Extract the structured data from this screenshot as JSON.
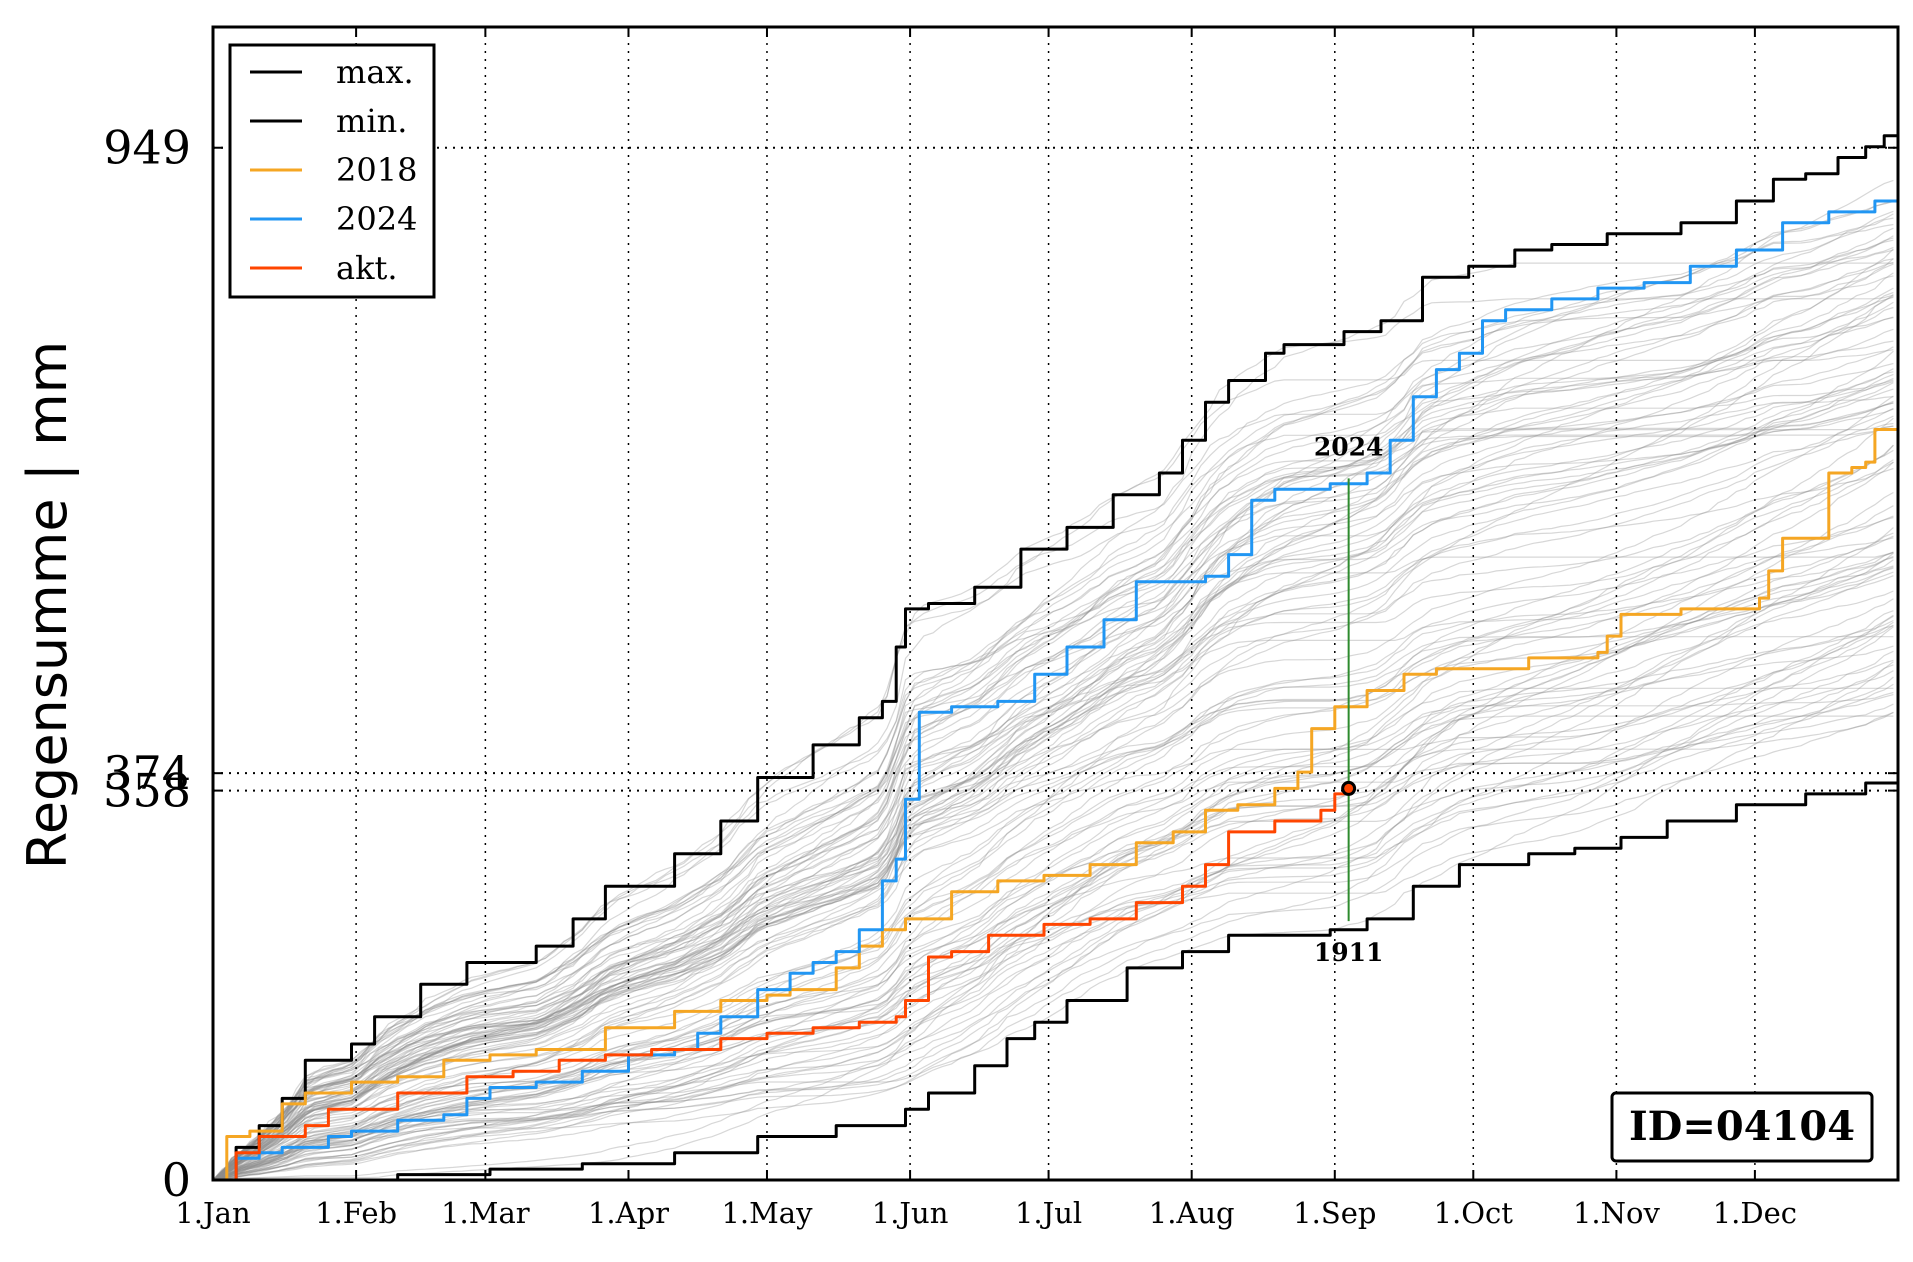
{
  "chart_data": {
    "type": "line",
    "title": "",
    "xlabel": "",
    "ylabel": "Regensumme | mm",
    "x_unit": "day of year",
    "xlim": [
      0,
      365
    ],
    "ylim": [
      0,
      1060
    ],
    "grid": true,
    "legend_position": "top-left",
    "x_ticks": [
      {
        "day": 0,
        "label": "1.Jan"
      },
      {
        "day": 31,
        "label": "1.Feb"
      },
      {
        "day": 59,
        "label": "1.Mar"
      },
      {
        "day": 90,
        "label": "1.Apr"
      },
      {
        "day": 120,
        "label": "1.May"
      },
      {
        "day": 151,
        "label": "1.Jun"
      },
      {
        "day": 181,
        "label": "1.Jul"
      },
      {
        "day": 212,
        "label": "1.Aug"
      },
      {
        "day": 243,
        "label": "1.Sep"
      },
      {
        "day": 273,
        "label": "1.Oct"
      },
      {
        "day": 304,
        "label": "1.Nov"
      },
      {
        "day": 334,
        "label": "1.Dec"
      }
    ],
    "y_ticks": [
      {
        "value": 0,
        "label": "0"
      },
      {
        "value": 358,
        "label": "358"
      },
      {
        "value": 374,
        "label": "374"
      },
      {
        "value": 949,
        "label": "949"
      }
    ],
    "series": [
      {
        "name": "max.",
        "color": "#000000",
        "width": 3,
        "points": [
          [
            0,
            0
          ],
          [
            5,
            30
          ],
          [
            10,
            50
          ],
          [
            15,
            75
          ],
          [
            20,
            110
          ],
          [
            30,
            125
          ],
          [
            35,
            150
          ],
          [
            45,
            180
          ],
          [
            55,
            200
          ],
          [
            70,
            215
          ],
          [
            78,
            240
          ],
          [
            85,
            270
          ],
          [
            100,
            300
          ],
          [
            110,
            330
          ],
          [
            118,
            370
          ],
          [
            130,
            400
          ],
          [
            140,
            425
          ],
          [
            145,
            440
          ],
          [
            148,
            490
          ],
          [
            150,
            525
          ],
          [
            155,
            530
          ],
          [
            165,
            545
          ],
          [
            175,
            580
          ],
          [
            185,
            600
          ],
          [
            195,
            630
          ],
          [
            205,
            650
          ],
          [
            210,
            680
          ],
          [
            215,
            715
          ],
          [
            220,
            735
          ],
          [
            228,
            760
          ],
          [
            232,
            768
          ],
          [
            245,
            780
          ],
          [
            253,
            790
          ],
          [
            262,
            830
          ],
          [
            272,
            840
          ],
          [
            282,
            855
          ],
          [
            290,
            860
          ],
          [
            302,
            870
          ],
          [
            318,
            880
          ],
          [
            330,
            900
          ],
          [
            338,
            920
          ],
          [
            345,
            925
          ],
          [
            352,
            940
          ],
          [
            358,
            950
          ],
          [
            362,
            960
          ],
          [
            365,
            965
          ]
        ]
      },
      {
        "name": "min.",
        "color": "#000000",
        "width": 3,
        "points": [
          [
            0,
            0
          ],
          [
            30,
            0
          ],
          [
            40,
            5
          ],
          [
            60,
            10
          ],
          [
            80,
            15
          ],
          [
            100,
            25
          ],
          [
            118,
            40
          ],
          [
            135,
            50
          ],
          [
            150,
            65
          ],
          [
            155,
            80
          ],
          [
            165,
            105
          ],
          [
            172,
            130
          ],
          [
            178,
            145
          ],
          [
            185,
            165
          ],
          [
            198,
            195
          ],
          [
            210,
            210
          ],
          [
            220,
            225
          ],
          [
            242,
            230
          ],
          [
            250,
            240
          ],
          [
            260,
            270
          ],
          [
            270,
            290
          ],
          [
            285,
            300
          ],
          [
            295,
            305
          ],
          [
            305,
            315
          ],
          [
            315,
            330
          ],
          [
            330,
            345
          ],
          [
            345,
            355
          ],
          [
            358,
            365
          ],
          [
            365,
            375
          ]
        ]
      },
      {
        "name": "2018",
        "color": "#f5a623",
        "width": 3,
        "points": [
          [
            0,
            0
          ],
          [
            3,
            40
          ],
          [
            8,
            45
          ],
          [
            15,
            70
          ],
          [
            20,
            80
          ],
          [
            30,
            90
          ],
          [
            40,
            95
          ],
          [
            50,
            110
          ],
          [
            60,
            115
          ],
          [
            70,
            120
          ],
          [
            85,
            140
          ],
          [
            100,
            155
          ],
          [
            110,
            165
          ],
          [
            120,
            170
          ],
          [
            125,
            175
          ],
          [
            135,
            195
          ],
          [
            140,
            215
          ],
          [
            145,
            230
          ],
          [
            150,
            240
          ],
          [
            160,
            265
          ],
          [
            170,
            275
          ],
          [
            180,
            280
          ],
          [
            190,
            290
          ],
          [
            200,
            310
          ],
          [
            208,
            320
          ],
          [
            215,
            340
          ],
          [
            222,
            345
          ],
          [
            230,
            360
          ],
          [
            235,
            375
          ],
          [
            238,
            415
          ],
          [
            243,
            435
          ],
          [
            250,
            450
          ],
          [
            258,
            465
          ],
          [
            265,
            470
          ],
          [
            285,
            480
          ],
          [
            300,
            485
          ],
          [
            302,
            500
          ],
          [
            305,
            520
          ],
          [
            318,
            525
          ],
          [
            335,
            535
          ],
          [
            337,
            560
          ],
          [
            340,
            590
          ],
          [
            350,
            650
          ],
          [
            355,
            655
          ],
          [
            358,
            660
          ],
          [
            360,
            690
          ],
          [
            365,
            692
          ]
        ]
      },
      {
        "name": "2024",
        "color": "#2196f3",
        "width": 3,
        "points": [
          [
            0,
            0
          ],
          [
            5,
            20
          ],
          [
            10,
            25
          ],
          [
            15,
            30
          ],
          [
            25,
            40
          ],
          [
            30,
            45
          ],
          [
            40,
            55
          ],
          [
            50,
            60
          ],
          [
            55,
            75
          ],
          [
            60,
            85
          ],
          [
            70,
            90
          ],
          [
            80,
            100
          ],
          [
            90,
            115
          ],
          [
            100,
            120
          ],
          [
            105,
            135
          ],
          [
            110,
            150
          ],
          [
            118,
            175
          ],
          [
            125,
            190
          ],
          [
            130,
            200
          ],
          [
            135,
            210
          ],
          [
            140,
            230
          ],
          [
            145,
            275
          ],
          [
            148,
            295
          ],
          [
            150,
            350
          ],
          [
            153,
            430
          ],
          [
            160,
            435
          ],
          [
            170,
            440
          ],
          [
            178,
            465
          ],
          [
            185,
            490
          ],
          [
            193,
            515
          ],
          [
            200,
            550
          ],
          [
            215,
            555
          ],
          [
            220,
            575
          ],
          [
            225,
            625
          ],
          [
            230,
            635
          ],
          [
            242,
            640
          ],
          [
            250,
            650
          ],
          [
            255,
            680
          ],
          [
            260,
            720
          ],
          [
            265,
            745
          ],
          [
            270,
            760
          ],
          [
            275,
            790
          ],
          [
            280,
            800
          ],
          [
            290,
            810
          ],
          [
            300,
            820
          ],
          [
            310,
            825
          ],
          [
            320,
            840
          ],
          [
            330,
            855
          ],
          [
            340,
            880
          ],
          [
            350,
            890
          ],
          [
            360,
            900
          ],
          [
            365,
            900
          ]
        ]
      },
      {
        "name": "akt.",
        "color": "#ff4500",
        "width": 3,
        "points": [
          [
            0,
            0
          ],
          [
            5,
            25
          ],
          [
            10,
            40
          ],
          [
            15,
            40
          ],
          [
            20,
            50
          ],
          [
            25,
            65
          ],
          [
            30,
            65
          ],
          [
            40,
            80
          ],
          [
            45,
            80
          ],
          [
            55,
            95
          ],
          [
            65,
            100
          ],
          [
            75,
            110
          ],
          [
            85,
            115
          ],
          [
            95,
            120
          ],
          [
            110,
            130
          ],
          [
            120,
            135
          ],
          [
            130,
            140
          ],
          [
            140,
            145
          ],
          [
            148,
            150
          ],
          [
            150,
            165
          ],
          [
            155,
            205
          ],
          [
            160,
            210
          ],
          [
            168,
            225
          ],
          [
            180,
            235
          ],
          [
            190,
            240
          ],
          [
            200,
            255
          ],
          [
            210,
            270
          ],
          [
            215,
            290
          ],
          [
            220,
            320
          ],
          [
            230,
            330
          ],
          [
            240,
            340
          ],
          [
            243,
            355
          ],
          [
            245,
            360
          ],
          [
            246,
            360
          ]
        ]
      }
    ],
    "current_point": {
      "day": 246,
      "value": 360
    },
    "annotations": [
      {
        "label": "2024",
        "day": 246,
        "value": 645,
        "position": "above"
      },
      {
        "label": "1911",
        "day": 246,
        "value": 238,
        "position": "below"
      }
    ],
    "id_label": "ID=04104",
    "background_years_count": 110
  }
}
